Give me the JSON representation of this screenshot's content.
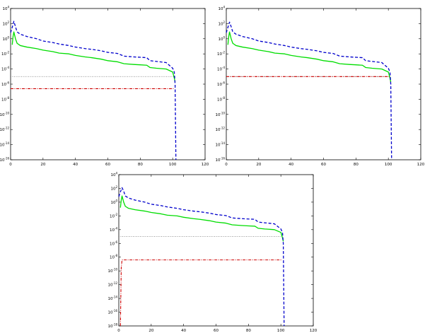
{
  "chart_data": [
    {
      "type": "line",
      "panel": "top-left",
      "xlim": [
        0,
        120
      ],
      "ylim": [
        -16,
        4
      ],
      "y_scale": "log10",
      "x_ticks": [
        "0",
        "20",
        "40",
        "60",
        "80",
        "100",
        "120"
      ],
      "y_ticks": [
        {
          "base": "10",
          "exp": "4"
        },
        {
          "base": "10",
          "exp": "2"
        },
        {
          "base": "10",
          "exp": "0"
        },
        {
          "base": "10",
          "exp": "-2"
        },
        {
          "base": "10",
          "exp": "-4"
        },
        {
          "base": "10",
          "exp": "-6"
        },
        {
          "base": "10",
          "exp": "-8"
        },
        {
          "base": "10",
          "exp": "-10"
        },
        {
          "base": "10",
          "exp": "-12"
        },
        {
          "base": "10",
          "exp": "-14"
        },
        {
          "base": "10",
          "exp": "-16"
        }
      ],
      "series": [
        {
          "style": "dashed",
          "color": "#0000cc",
          "points": [
            [
              0,
              0.8
            ],
            [
              1,
              1.5
            ],
            [
              2,
              2.3
            ],
            [
              3,
              1.6
            ],
            [
              4,
              0.9
            ],
            [
              6,
              0.6
            ],
            [
              10,
              0.3
            ],
            [
              16,
              0.0
            ],
            [
              20,
              -0.3
            ],
            [
              26,
              -0.5
            ],
            [
              30,
              -0.7
            ],
            [
              36,
              -0.9
            ],
            [
              40,
              -1.1
            ],
            [
              46,
              -1.3
            ],
            [
              50,
              -1.4
            ],
            [
              56,
              -1.6
            ],
            [
              60,
              -1.8
            ],
            [
              66,
              -1.95
            ],
            [
              70,
              -2.3
            ],
            [
              76,
              -2.4
            ],
            [
              80,
              -2.45
            ],
            [
              84,
              -2.5
            ],
            [
              86,
              -2.9
            ],
            [
              90,
              -3.0
            ],
            [
              96,
              -3.15
            ],
            [
              100,
              -3.9
            ],
            [
              101,
              -4.4
            ],
            [
              101.5,
              -6.0
            ],
            [
              102,
              -16
            ]
          ]
        },
        {
          "style": "solid",
          "color": "#00dd00",
          "points": [
            [
              1,
              -0.8
            ],
            [
              1.5,
              0.3
            ],
            [
              2,
              0.9
            ],
            [
              3,
              0.0
            ],
            [
              4,
              -0.6
            ],
            [
              6,
              -0.9
            ],
            [
              10,
              -1.1
            ],
            [
              16,
              -1.3
            ],
            [
              20,
              -1.5
            ],
            [
              26,
              -1.7
            ],
            [
              30,
              -1.9
            ],
            [
              36,
              -2.0
            ],
            [
              40,
              -2.2
            ],
            [
              46,
              -2.4
            ],
            [
              50,
              -2.5
            ],
            [
              56,
              -2.7
            ],
            [
              60,
              -2.9
            ],
            [
              66,
              -3.05
            ],
            [
              70,
              -3.3
            ],
            [
              76,
              -3.4
            ],
            [
              80,
              -3.45
            ],
            [
              84,
              -3.5
            ],
            [
              86,
              -3.8
            ],
            [
              90,
              -3.9
            ],
            [
              96,
              -4.0
            ],
            [
              100,
              -4.4
            ],
            [
              101,
              -5.2
            ],
            [
              101.5,
              -5.7
            ]
          ]
        },
        {
          "style": "dotted",
          "color": "#888888",
          "points": [
            [
              0,
              -5.0
            ],
            [
              101,
              -5.0
            ]
          ]
        },
        {
          "style": "dashdot",
          "color": "#cc0000",
          "points": [
            [
              0,
              -6.6
            ],
            [
              100.5,
              -6.6
            ]
          ]
        }
      ]
    },
    {
      "type": "line",
      "panel": "top-right",
      "xlim": [
        0,
        120
      ],
      "ylim": [
        -16,
        4
      ],
      "y_scale": "log10",
      "x_ticks": [
        "0",
        "20",
        "40",
        "60",
        "80",
        "100",
        "120"
      ],
      "y_ticks": [
        {
          "base": "10",
          "exp": "4"
        },
        {
          "base": "10",
          "exp": "2"
        },
        {
          "base": "10",
          "exp": "0"
        },
        {
          "base": "10",
          "exp": "-2"
        },
        {
          "base": "10",
          "exp": "-4"
        },
        {
          "base": "10",
          "exp": "-6"
        },
        {
          "base": "10",
          "exp": "-8"
        },
        {
          "base": "10",
          "exp": "-10"
        },
        {
          "base": "10",
          "exp": "-12"
        },
        {
          "base": "10",
          "exp": "-14"
        },
        {
          "base": "10",
          "exp": "-16"
        }
      ],
      "series": [
        {
          "style": "dashed",
          "color": "#0000cc",
          "points": [
            [
              0,
              0.8
            ],
            [
              1,
              1.5
            ],
            [
              2,
              2.2
            ],
            [
              3,
              1.6
            ],
            [
              4,
              0.9
            ],
            [
              6,
              0.6
            ],
            [
              10,
              0.3
            ],
            [
              16,
              0.0
            ],
            [
              20,
              -0.3
            ],
            [
              26,
              -0.5
            ],
            [
              30,
              -0.7
            ],
            [
              36,
              -0.9
            ],
            [
              40,
              -1.1
            ],
            [
              46,
              -1.3
            ],
            [
              50,
              -1.4
            ],
            [
              56,
              -1.6
            ],
            [
              60,
              -1.8
            ],
            [
              66,
              -1.95
            ],
            [
              70,
              -2.3
            ],
            [
              76,
              -2.4
            ],
            [
              80,
              -2.45
            ],
            [
              84,
              -2.5
            ],
            [
              86,
              -2.9
            ],
            [
              90,
              -3.0
            ],
            [
              96,
              -3.15
            ],
            [
              100,
              -3.9
            ],
            [
              101,
              -4.4
            ],
            [
              101.5,
              -6.0
            ],
            [
              102,
              -16
            ]
          ]
        },
        {
          "style": "solid",
          "color": "#00dd00",
          "points": [
            [
              1,
              -0.8
            ],
            [
              1.5,
              0.3
            ],
            [
              2,
              0.9
            ],
            [
              3,
              0.0
            ],
            [
              4,
              -0.6
            ],
            [
              6,
              -0.9
            ],
            [
              10,
              -1.1
            ],
            [
              16,
              -1.3
            ],
            [
              20,
              -1.5
            ],
            [
              26,
              -1.7
            ],
            [
              30,
              -1.9
            ],
            [
              36,
              -2.0
            ],
            [
              40,
              -2.2
            ],
            [
              46,
              -2.4
            ],
            [
              50,
              -2.5
            ],
            [
              56,
              -2.7
            ],
            [
              60,
              -2.9
            ],
            [
              66,
              -3.05
            ],
            [
              70,
              -3.3
            ],
            [
              76,
              -3.4
            ],
            [
              80,
              -3.45
            ],
            [
              84,
              -3.5
            ],
            [
              86,
              -3.8
            ],
            [
              90,
              -3.9
            ],
            [
              96,
              -4.0
            ],
            [
              100,
              -4.4
            ],
            [
              101,
              -5.2
            ],
            [
              101.5,
              -5.7
            ]
          ]
        },
        {
          "style": "dotted",
          "color": "#888888",
          "points": [
            [
              0,
              -5.0
            ],
            [
              101,
              -5.0
            ]
          ]
        },
        {
          "style": "dashdot",
          "color": "#cc0000",
          "points": [
            [
              0,
              -5.0
            ],
            [
              101,
              -5.0
            ],
            [
              101.5,
              -6.0
            ]
          ]
        }
      ]
    },
    {
      "type": "line",
      "panel": "bottom-center",
      "xlim": [
        0,
        120
      ],
      "ylim": [
        -18,
        4
      ],
      "y_scale": "log10",
      "x_ticks": [
        "0",
        "20",
        "40",
        "60",
        "80",
        "100",
        "120"
      ],
      "y_ticks": [
        {
          "base": "10",
          "exp": "4"
        },
        {
          "base": "10",
          "exp": "2"
        },
        {
          "base": "10",
          "exp": "0"
        },
        {
          "base": "10",
          "exp": "-2"
        },
        {
          "base": "10",
          "exp": "-4"
        },
        {
          "base": "10",
          "exp": "-6"
        },
        {
          "base": "10",
          "exp": "-8"
        },
        {
          "base": "10",
          "exp": "-10"
        },
        {
          "base": "10",
          "exp": "-12"
        },
        {
          "base": "10",
          "exp": "-14"
        },
        {
          "base": "10",
          "exp": "-16"
        },
        {
          "base": "10",
          "exp": "-18"
        }
      ],
      "series": [
        {
          "style": "dashed",
          "color": "#0000cc",
          "points": [
            [
              0,
              0.8
            ],
            [
              1,
              1.5
            ],
            [
              2,
              2.1
            ],
            [
              3,
              1.6
            ],
            [
              4,
              0.9
            ],
            [
              6,
              0.6
            ],
            [
              10,
              0.3
            ],
            [
              16,
              0.0
            ],
            [
              20,
              -0.3
            ],
            [
              26,
              -0.5
            ],
            [
              30,
              -0.7
            ],
            [
              36,
              -0.9
            ],
            [
              40,
              -1.1
            ],
            [
              46,
              -1.3
            ],
            [
              50,
              -1.4
            ],
            [
              56,
              -1.6
            ],
            [
              60,
              -1.8
            ],
            [
              66,
              -1.95
            ],
            [
              70,
              -2.3
            ],
            [
              76,
              -2.4
            ],
            [
              80,
              -2.45
            ],
            [
              84,
              -2.5
            ],
            [
              86,
              -2.9
            ],
            [
              90,
              -3.0
            ],
            [
              96,
              -3.15
            ],
            [
              100,
              -3.9
            ],
            [
              101,
              -4.4
            ],
            [
              101.5,
              -6.0
            ],
            [
              102,
              -18
            ]
          ]
        },
        {
          "style": "solid",
          "color": "#00dd00",
          "points": [
            [
              1,
              -0.8
            ],
            [
              1.5,
              0.3
            ],
            [
              2,
              0.9
            ],
            [
              3,
              0.0
            ],
            [
              4,
              -0.6
            ],
            [
              6,
              -0.9
            ],
            [
              10,
              -1.1
            ],
            [
              16,
              -1.3
            ],
            [
              20,
              -1.5
            ],
            [
              26,
              -1.7
            ],
            [
              30,
              -1.9
            ],
            [
              36,
              -2.0
            ],
            [
              40,
              -2.2
            ],
            [
              46,
              -2.4
            ],
            [
              50,
              -2.5
            ],
            [
              56,
              -2.7
            ],
            [
              60,
              -2.9
            ],
            [
              66,
              -3.05
            ],
            [
              70,
              -3.3
            ],
            [
              76,
              -3.4
            ],
            [
              80,
              -3.45
            ],
            [
              84,
              -3.5
            ],
            [
              86,
              -3.8
            ],
            [
              90,
              -3.9
            ],
            [
              96,
              -4.0
            ],
            [
              100,
              -4.4
            ],
            [
              101,
              -5.2
            ],
            [
              101.5,
              -5.7
            ]
          ]
        },
        {
          "style": "dotted",
          "color": "#888888",
          "points": [
            [
              0,
              -5.0
            ],
            [
              101,
              -5.0
            ]
          ]
        },
        {
          "style": "dashdot",
          "color": "#cc0000",
          "points": [
            [
              1,
              -18
            ],
            [
              1.5,
              -9.5
            ],
            [
              2,
              -8.4
            ],
            [
              100.5,
              -8.4
            ]
          ]
        }
      ]
    }
  ]
}
